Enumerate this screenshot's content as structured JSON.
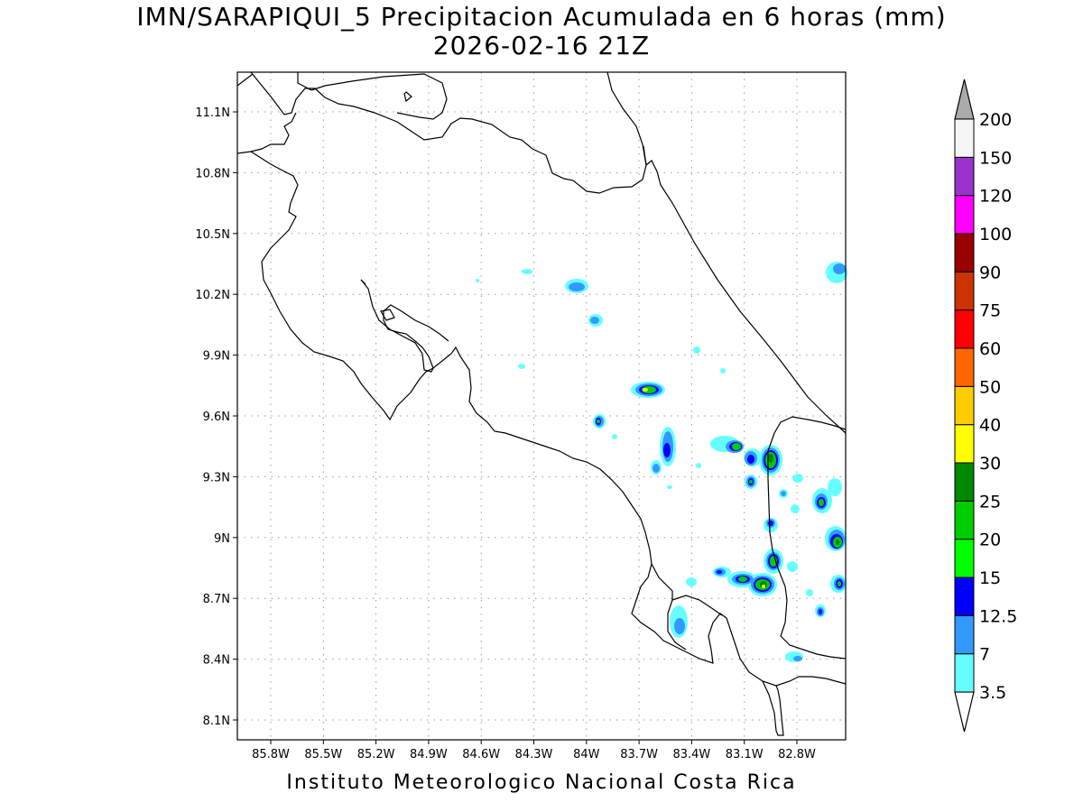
{
  "title_line1": "IMN/SARAPIQUI_5 Precipitacion Acumulada en 6 horas (mm)",
  "title_line2": "2026-02-16 21Z",
  "footer": "Instituto Meteorologico Nacional Costa Rica",
  "map": {
    "lat_ticks": [
      "11.1N",
      "10.8N",
      "10.5N",
      "10.2N",
      "9.9N",
      "9.6N",
      "9.3N",
      "9N",
      "8.7N",
      "8.4N",
      "8.1N"
    ],
    "lon_ticks": [
      "85.8W",
      "85.5W",
      "85.2W",
      "84.9W",
      "84.6W",
      "84.3W",
      "84W",
      "83.7W",
      "83.4W",
      "83.1W",
      "82.8W"
    ],
    "grid": true,
    "grid_style": "dotted"
  },
  "legend": {
    "levels": [
      "3.5",
      "7",
      "12.5",
      "15",
      "20",
      "25",
      "30",
      "40",
      "50",
      "60",
      "75",
      "90",
      "100",
      "120",
      "150",
      "200"
    ],
    "colors": [
      "#66ffff",
      "#3399ff",
      "#0000ff",
      "#00ff00",
      "#00cc00",
      "#008800",
      "#ffff00",
      "#ffcc00",
      "#ff6600",
      "#ff0000",
      "#cc3300",
      "#990000",
      "#ff00ff",
      "#9933cc",
      "#f5f5f5"
    ],
    "under_color": "#ffffff",
    "over_color": "#aaaaaa"
  }
}
